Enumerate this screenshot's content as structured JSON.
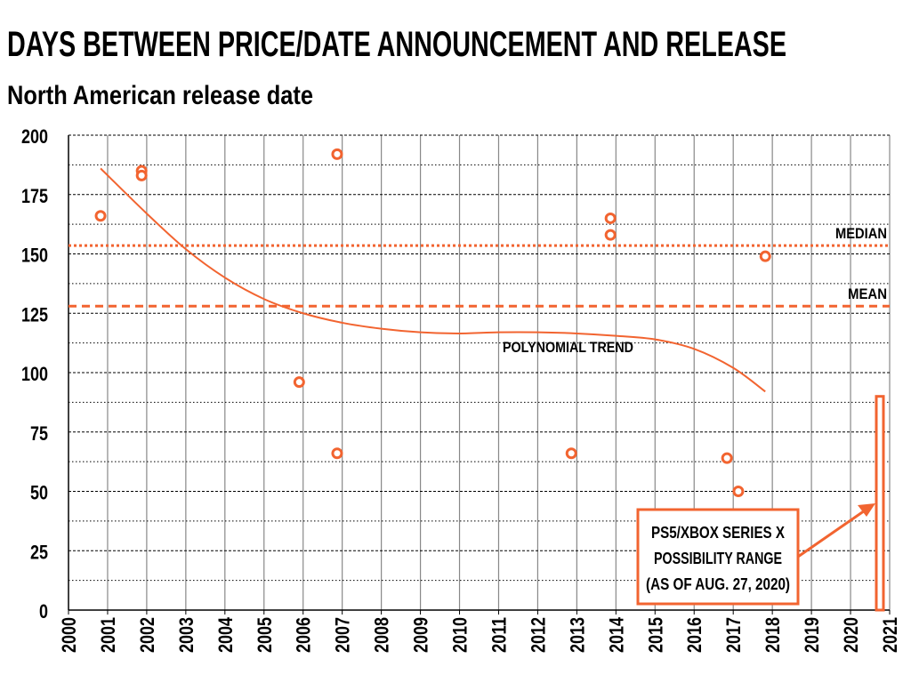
{
  "chart_data": {
    "type": "scatter",
    "title": "DAYS BETWEEN PRICE/DATE ANNOUNCEMENT AND RELEASE",
    "subtitle": "North American release date",
    "xlim": [
      2000,
      2021
    ],
    "ylim": [
      0,
      200
    ],
    "x_ticks": [
      2000,
      2001,
      2002,
      2003,
      2004,
      2005,
      2006,
      2007,
      2008,
      2009,
      2010,
      2011,
      2012,
      2013,
      2014,
      2015,
      2016,
      2017,
      2018,
      2019,
      2020,
      2021
    ],
    "y_ticks": [
      0,
      25,
      50,
      75,
      100,
      125,
      150,
      175,
      200
    ],
    "grid": true,
    "colors": {
      "accent": "#f26430",
      "grid": "#000000",
      "vgrid": "#888888"
    },
    "points": [
      {
        "x": 2000.82,
        "y": 166
      },
      {
        "x": 2001.87,
        "y": 185
      },
      {
        "x": 2001.87,
        "y": 183
      },
      {
        "x": 2005.9,
        "y": 96
      },
      {
        "x": 2006.87,
        "y": 192
      },
      {
        "x": 2006.87,
        "y": 66
      },
      {
        "x": 2012.86,
        "y": 66
      },
      {
        "x": 2013.86,
        "y": 165
      },
      {
        "x": 2013.86,
        "y": 158
      },
      {
        "x": 2016.84,
        "y": 64
      },
      {
        "x": 2017.13,
        "y": 50
      },
      {
        "x": 2017.82,
        "y": 149
      }
    ],
    "median": {
      "label": "MEDIAN",
      "value": 153.5
    },
    "mean": {
      "label": "MEAN",
      "value": 128
    },
    "trend": {
      "label": "POLYNOMIAL TREND",
      "points": [
        [
          2000.82,
          186
        ],
        [
          2002,
          167
        ],
        [
          2003,
          152
        ],
        [
          2004,
          140
        ],
        [
          2005,
          131
        ],
        [
          2006,
          125
        ],
        [
          2007,
          121
        ],
        [
          2008,
          118.5
        ],
        [
          2009,
          117
        ],
        [
          2010,
          116.5
        ],
        [
          2011,
          117
        ],
        [
          2012,
          117
        ],
        [
          2013,
          116.5
        ],
        [
          2014,
          115.5
        ],
        [
          2015,
          114
        ],
        [
          2016,
          110
        ],
        [
          2017,
          102
        ],
        [
          2017.82,
          92
        ]
      ]
    },
    "range": {
      "x": 2020.75,
      "low": 0,
      "high": 90
    },
    "annotation": {
      "lines": [
        "PS5/XBOX SERIES X",
        "POSSIBILITY RANGE",
        "(AS OF AUG. 27, 2020)"
      ]
    }
  }
}
